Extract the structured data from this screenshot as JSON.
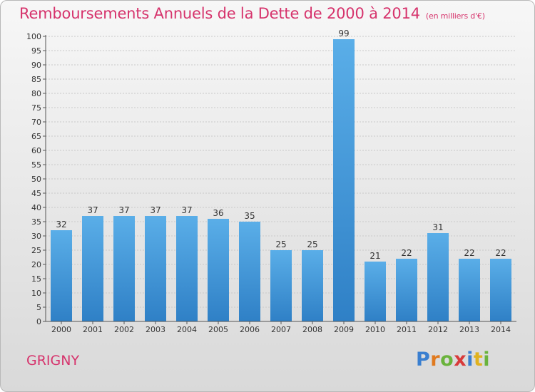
{
  "header": {
    "title": "Remboursements Annuels de la Dette de 2000 à 2014",
    "unit": "(en milliers d'€)"
  },
  "footer": {
    "commune": "GRIGNY",
    "logo_text": "Proxiti"
  },
  "colors": {
    "title": "#d6336c",
    "bar_top": "#5aaee8",
    "bar_bottom": "#2f80c6",
    "logo_letters": [
      "#3a7fd0",
      "#e07a1f",
      "#6ab33c",
      "#d83a3a",
      "#3a7fd0",
      "#e0b21f",
      "#6ab33c"
    ]
  },
  "chart_data": {
    "type": "bar",
    "categories": [
      "2000",
      "2001",
      "2002",
      "2003",
      "2004",
      "2005",
      "2006",
      "2007",
      "2008",
      "2009",
      "2010",
      "2011",
      "2012",
      "2013",
      "2014"
    ],
    "values": [
      32,
      37,
      37,
      37,
      37,
      36,
      35,
      25,
      25,
      99,
      21,
      22,
      31,
      22,
      22
    ],
    "ylim": [
      0,
      100
    ],
    "yticks": [
      0,
      5,
      10,
      15,
      20,
      25,
      30,
      35,
      40,
      45,
      50,
      55,
      60,
      65,
      70,
      75,
      80,
      85,
      90,
      95,
      100
    ],
    "grid": true,
    "data_labels": true
  }
}
